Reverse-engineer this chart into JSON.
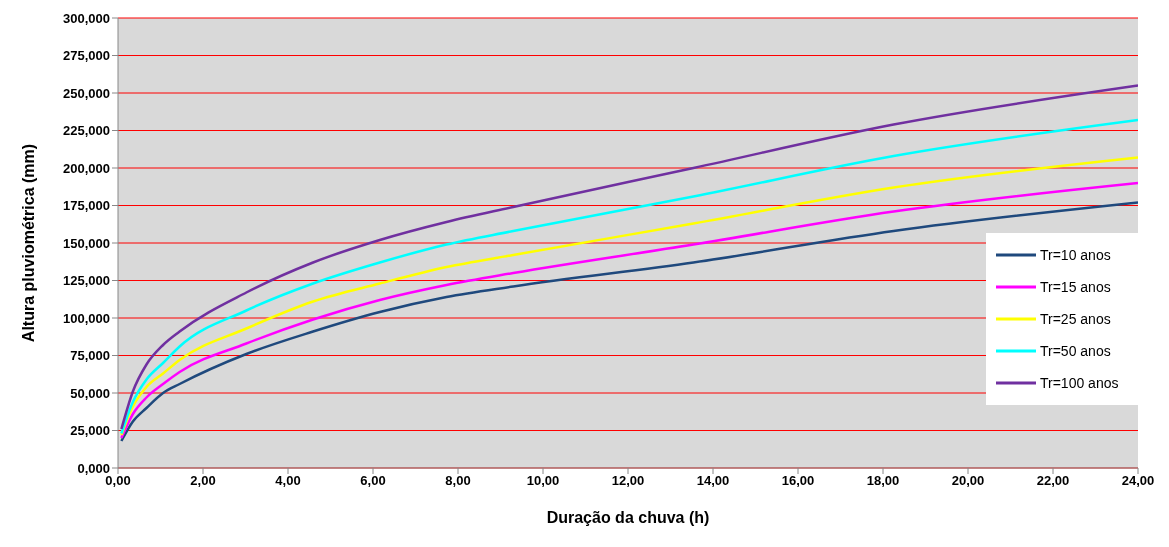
{
  "chart_data": {
    "type": "line",
    "xlabel": "Duração da chuva (h)",
    "ylabel": "Altura pluviométrica  (mm)",
    "x": [
      0.08,
      0.35,
      0.67,
      1.06,
      1.45,
      3.02,
      4.59,
      6.16,
      7.73,
      9.3,
      13.54,
      18.25,
      24
    ],
    "series": [
      {
        "name": "Tr=10 anos",
        "color": "#1f497d",
        "values": [
          18,
          31,
          40,
          50,
          56,
          76,
          91,
          104,
          114,
          121,
          137,
          158,
          177
        ]
      },
      {
        "name": "Tr=15 anos",
        "color": "#ff00ff",
        "values": [
          20,
          36,
          47,
          56,
          64,
          83,
          99,
          112,
          122,
          130,
          149,
          171,
          190
        ]
      },
      {
        "name": "Tr=25 anos",
        "color": "#ffff00",
        "values": [
          22,
          41,
          54,
          63,
          72,
          93,
          111,
          123,
          134,
          142,
          163,
          187,
          207
        ]
      },
      {
        "name": "Tr=50 anos",
        "color": "#00ffff",
        "values": [
          23,
          44,
          59,
          70,
          81,
          105,
          123,
          137,
          149,
          158,
          181,
          208,
          232
        ]
      },
      {
        "name": "Tr=100 anos",
        "color": "#7030a0",
        "values": [
          26,
          51,
          69,
          82,
          91,
          117,
          137,
          152,
          164,
          174,
          200,
          229,
          255
        ]
      }
    ],
    "xlim": [
      0,
      24
    ],
    "xticks": [
      {
        "value": 0,
        "label": "0,00"
      },
      {
        "value": 2,
        "label": "2,00"
      },
      {
        "value": 4,
        "label": "4,00"
      },
      {
        "value": 6,
        "label": "6,00"
      },
      {
        "value": 8,
        "label": "8,00"
      },
      {
        "value": 10,
        "label": "10,00"
      },
      {
        "value": 12,
        "label": "12,00"
      },
      {
        "value": 14,
        "label": "14,00"
      },
      {
        "value": 16,
        "label": "16,00"
      },
      {
        "value": 18,
        "label": "18,00"
      },
      {
        "value": 20,
        "label": "20,00"
      },
      {
        "value": 22,
        "label": "22,00"
      },
      {
        "value": 24,
        "label": "24,00"
      }
    ],
    "ylim": [
      0,
      300
    ],
    "yticks": [
      {
        "value": 0,
        "label": "0,000"
      },
      {
        "value": 25,
        "label": "25,000"
      },
      {
        "value": 50,
        "label": "50,000"
      },
      {
        "value": 75,
        "label": "75,000"
      },
      {
        "value": 100,
        "label": "100,000"
      },
      {
        "value": 125,
        "label": "125,000"
      },
      {
        "value": 150,
        "label": "150,000"
      },
      {
        "value": 175,
        "label": "175,000"
      },
      {
        "value": 200,
        "label": "200,000"
      },
      {
        "value": 225,
        "label": "225,000"
      },
      {
        "value": 250,
        "label": "250,000"
      },
      {
        "value": 275,
        "label": "275,000"
      },
      {
        "value": 300,
        "label": "300,000"
      }
    ],
    "grid": "y",
    "legend": "bottom right",
    "marker": "none",
    "line_style": "solid"
  }
}
